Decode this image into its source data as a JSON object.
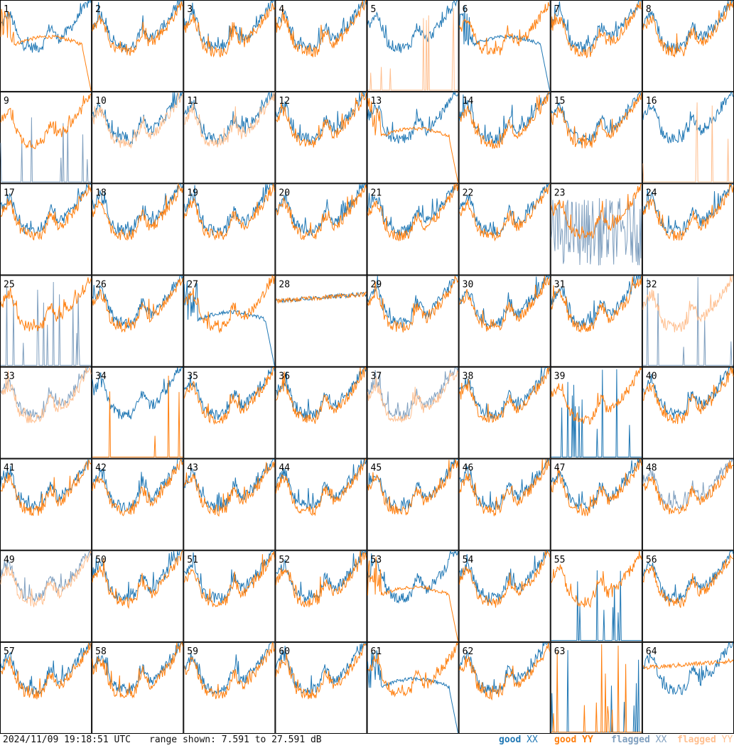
{
  "footer": {
    "timestamp": "2024/11/09 19:18:51 UTC",
    "range": "range shown: 7.591 to 27.591 dB"
  },
  "legend": [
    {
      "key": "good",
      "pol": "XX",
      "color": "#1f77b4"
    },
    {
      "key": "good",
      "pol": "YY",
      "color": "#ff7f0e"
    },
    {
      "key": "flagged",
      "pol": "XX",
      "color": "#7f9fbf"
    },
    {
      "key": "flagged",
      "pol": "YY",
      "color": "#ffbf8f"
    }
  ],
  "chart_data": {
    "type": "line",
    "title": "",
    "xlabel": "",
    "ylabel": "",
    "ylim": [
      7.591,
      27.591
    ],
    "grid": {
      "rows": 8,
      "cols": 8
    },
    "panels": [
      {
        "id": "1",
        "xx": "good",
        "yy": "good",
        "xx_shape": "normal",
        "yy_shape": "droop"
      },
      {
        "id": "2",
        "xx": "good",
        "yy": "good",
        "xx_shape": "normal",
        "yy_shape": "normal"
      },
      {
        "id": "3",
        "xx": "good",
        "yy": "good",
        "xx_shape": "normal",
        "yy_shape": "normal"
      },
      {
        "id": "4",
        "xx": "good",
        "yy": "good",
        "xx_shape": "normal",
        "yy_shape": "normal"
      },
      {
        "id": "5",
        "xx": "good",
        "yy": "flagged",
        "xx_shape": "normal",
        "yy_shape": "spikes"
      },
      {
        "id": "6",
        "xx": "good",
        "yy": "good",
        "xx_shape": "droop",
        "yy_shape": "normal"
      },
      {
        "id": "7",
        "xx": "good",
        "yy": "good",
        "xx_shape": "normal",
        "yy_shape": "normal"
      },
      {
        "id": "8",
        "xx": "good",
        "yy": "good",
        "xx_shape": "normal",
        "yy_shape": "normal"
      },
      {
        "id": "9",
        "xx": "flagged",
        "yy": "good",
        "xx_shape": "spikes",
        "yy_shape": "normal"
      },
      {
        "id": "10",
        "xx": "good",
        "yy": "flagged",
        "xx_shape": "normal",
        "yy_shape": "normal"
      },
      {
        "id": "11",
        "xx": "good",
        "yy": "flagged",
        "xx_shape": "normal",
        "yy_shape": "normal"
      },
      {
        "id": "12",
        "xx": "good",
        "yy": "good",
        "xx_shape": "normal",
        "yy_shape": "normal"
      },
      {
        "id": "13",
        "xx": "good",
        "yy": "good",
        "xx_shape": "normal",
        "yy_shape": "droop"
      },
      {
        "id": "14",
        "xx": "good",
        "yy": "good",
        "xx_shape": "normal",
        "yy_shape": "normal"
      },
      {
        "id": "15",
        "xx": "good",
        "yy": "good",
        "xx_shape": "normal",
        "yy_shape": "normal"
      },
      {
        "id": "16",
        "xx": "good",
        "yy": "flagged",
        "xx_shape": "normal",
        "yy_shape": "spikes"
      },
      {
        "id": "17",
        "xx": "good",
        "yy": "good",
        "xx_shape": "normal",
        "yy_shape": "normal"
      },
      {
        "id": "18",
        "xx": "good",
        "yy": "good",
        "xx_shape": "normal",
        "yy_shape": "normal"
      },
      {
        "id": "19",
        "xx": "good",
        "yy": "good",
        "xx_shape": "normal",
        "yy_shape": "normal"
      },
      {
        "id": "20",
        "xx": "good",
        "yy": "good",
        "xx_shape": "normal",
        "yy_shape": "normal"
      },
      {
        "id": "21",
        "xx": "good",
        "yy": "good",
        "xx_shape": "normal",
        "yy_shape": "normal"
      },
      {
        "id": "22",
        "xx": "good",
        "yy": "good",
        "xx_shape": "normal",
        "yy_shape": "normal"
      },
      {
        "id": "23",
        "xx": "flagged",
        "yy": "good",
        "xx_shape": "noisy",
        "yy_shape": "normal"
      },
      {
        "id": "24",
        "xx": "good",
        "yy": "good",
        "xx_shape": "normal",
        "yy_shape": "normal"
      },
      {
        "id": "25",
        "xx": "flagged",
        "yy": "good",
        "xx_shape": "spikes",
        "yy_shape": "normal"
      },
      {
        "id": "26",
        "xx": "good",
        "yy": "good",
        "xx_shape": "normal",
        "yy_shape": "normal"
      },
      {
        "id": "27",
        "xx": "good",
        "yy": "good",
        "xx_shape": "droop",
        "yy_shape": "normal"
      },
      {
        "id": "28",
        "xx": "good",
        "yy": "good",
        "xx_shape": "flat",
        "yy_shape": "flat"
      },
      {
        "id": "29",
        "xx": "good",
        "yy": "good",
        "xx_shape": "normal",
        "yy_shape": "normal"
      },
      {
        "id": "30",
        "xx": "good",
        "yy": "good",
        "xx_shape": "normal",
        "yy_shape": "normal"
      },
      {
        "id": "31",
        "xx": "good",
        "yy": "good",
        "xx_shape": "normal",
        "yy_shape": "normal"
      },
      {
        "id": "32",
        "xx": "flagged",
        "yy": "flagged",
        "xx_shape": "spikes",
        "yy_shape": "normal"
      },
      {
        "id": "33",
        "xx": "flagged",
        "yy": "flagged",
        "xx_shape": "normal",
        "yy_shape": "normal"
      },
      {
        "id": "34",
        "xx": "good",
        "yy": "good",
        "xx_shape": "normal",
        "yy_shape": "spikes"
      },
      {
        "id": "35",
        "xx": "good",
        "yy": "good",
        "xx_shape": "normal",
        "yy_shape": "normal"
      },
      {
        "id": "36",
        "xx": "good",
        "yy": "good",
        "xx_shape": "normal",
        "yy_shape": "normal"
      },
      {
        "id": "37",
        "xx": "flagged",
        "yy": "flagged",
        "xx_shape": "normal",
        "yy_shape": "normal"
      },
      {
        "id": "38",
        "xx": "good",
        "yy": "good",
        "xx_shape": "normal",
        "yy_shape": "normal"
      },
      {
        "id": "39",
        "xx": "good",
        "yy": "good",
        "xx_shape": "spikes",
        "yy_shape": "normal"
      },
      {
        "id": "40",
        "xx": "good",
        "yy": "good",
        "xx_shape": "normal",
        "yy_shape": "normal"
      },
      {
        "id": "41",
        "xx": "good",
        "yy": "good",
        "xx_shape": "normal",
        "yy_shape": "normal"
      },
      {
        "id": "42",
        "xx": "good",
        "yy": "good",
        "xx_shape": "normal",
        "yy_shape": "normal"
      },
      {
        "id": "43",
        "xx": "good",
        "yy": "good",
        "xx_shape": "normal",
        "yy_shape": "normal"
      },
      {
        "id": "44",
        "xx": "good",
        "yy": "good",
        "xx_shape": "normal",
        "yy_shape": "normal"
      },
      {
        "id": "45",
        "xx": "good",
        "yy": "good",
        "xx_shape": "normal",
        "yy_shape": "normal"
      },
      {
        "id": "46",
        "xx": "good",
        "yy": "good",
        "xx_shape": "normal",
        "yy_shape": "normal"
      },
      {
        "id": "47",
        "xx": "good",
        "yy": "good",
        "xx_shape": "normal",
        "yy_shape": "normal"
      },
      {
        "id": "48",
        "xx": "flagged",
        "yy": "good",
        "xx_shape": "normal",
        "yy_shape": "normal"
      },
      {
        "id": "49",
        "xx": "flagged",
        "yy": "flagged",
        "xx_shape": "normal",
        "yy_shape": "normal"
      },
      {
        "id": "50",
        "xx": "good",
        "yy": "good",
        "xx_shape": "normal",
        "yy_shape": "normal"
      },
      {
        "id": "51",
        "xx": "good",
        "yy": "good",
        "xx_shape": "normal",
        "yy_shape": "normal"
      },
      {
        "id": "52",
        "xx": "good",
        "yy": "good",
        "xx_shape": "normal",
        "yy_shape": "normal"
      },
      {
        "id": "53",
        "xx": "good",
        "yy": "good",
        "xx_shape": "normal",
        "yy_shape": "droop"
      },
      {
        "id": "54",
        "xx": "good",
        "yy": "good",
        "xx_shape": "normal",
        "yy_shape": "normal"
      },
      {
        "id": "55",
        "xx": "good",
        "yy": "good",
        "xx_shape": "spikes",
        "yy_shape": "normal"
      },
      {
        "id": "56",
        "xx": "good",
        "yy": "good",
        "xx_shape": "normal",
        "yy_shape": "normal"
      },
      {
        "id": "57",
        "xx": "good",
        "yy": "good",
        "xx_shape": "normal",
        "yy_shape": "normal"
      },
      {
        "id": "58",
        "xx": "good",
        "yy": "good",
        "xx_shape": "normal",
        "yy_shape": "normal"
      },
      {
        "id": "59",
        "xx": "good",
        "yy": "good",
        "xx_shape": "normal",
        "yy_shape": "normal"
      },
      {
        "id": "60",
        "xx": "good",
        "yy": "good",
        "xx_shape": "normal",
        "yy_shape": "normal"
      },
      {
        "id": "61",
        "xx": "good",
        "yy": "good",
        "xx_shape": "droop",
        "yy_shape": "normal"
      },
      {
        "id": "62",
        "xx": "good",
        "yy": "good",
        "xx_shape": "normal",
        "yy_shape": "normal"
      },
      {
        "id": "63",
        "xx": "good",
        "yy": "good",
        "xx_shape": "spikes",
        "yy_shape": "spikes"
      },
      {
        "id": "64",
        "xx": "good",
        "yy": "good",
        "xx_shape": "normal",
        "yy_shape": "flat"
      }
    ]
  }
}
